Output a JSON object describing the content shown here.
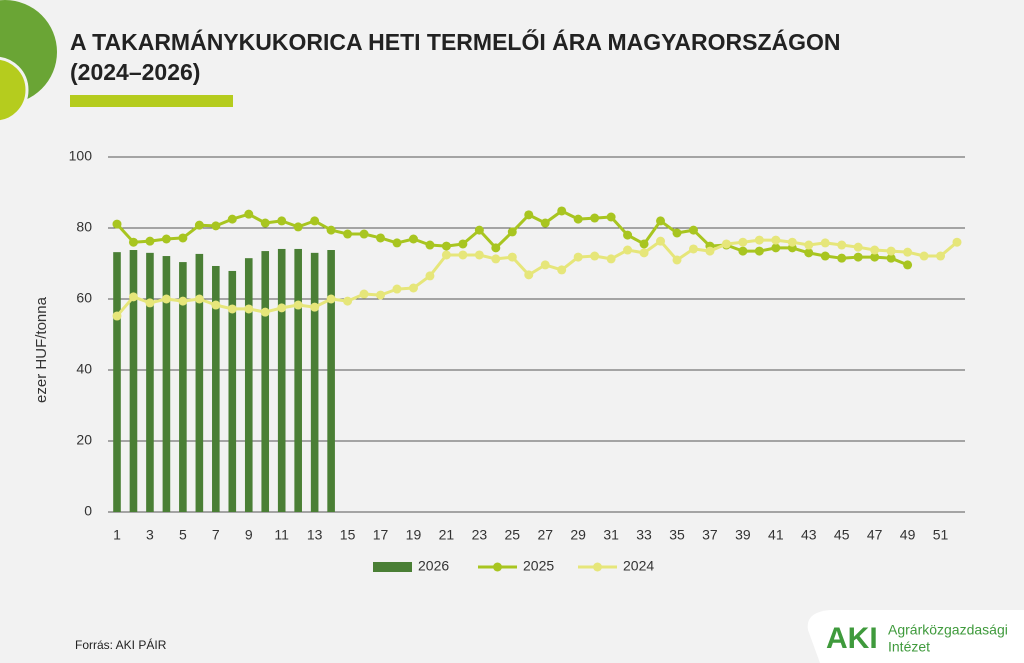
{
  "chart_data": {
    "type": "bar-line",
    "title": "A TAKARMÁNYKUKORICA HETI TERMELŐI ÁRA MAGYARORSZÁGON",
    "subtitle": "(2024–2026)",
    "y_label": "ezer HUF/tonna",
    "categories": [
      1,
      null,
      3,
      null,
      5,
      null,
      7,
      null,
      9,
      null,
      11,
      null,
      13,
      null,
      15,
      null,
      17,
      null,
      19,
      null,
      21,
      null,
      23,
      null,
      25,
      null,
      27,
      null,
      29,
      null,
      31,
      null,
      33,
      null,
      35,
      null,
      37,
      null,
      39,
      null,
      41,
      null,
      43,
      null,
      45,
      null,
      47,
      null,
      49,
      null,
      51,
      null
    ],
    "ylim": [
      0,
      100
    ],
    "yticks": [
      0,
      20,
      40,
      60,
      80,
      100
    ],
    "grid": true,
    "legend": "bottom",
    "series": [
      {
        "name": "2026",
        "type": "bar",
        "color": "#4a7f35",
        "values": [
          73.2,
          73.8,
          73,
          72.1,
          70.4,
          72.7,
          69.3,
          67.9,
          71.5,
          73.5,
          74.1,
          74.1,
          73,
          73.8,
          null,
          null,
          null,
          null,
          null,
          null,
          null,
          null,
          null,
          null,
          null,
          null,
          null,
          null,
          null,
          null,
          null,
          null,
          null,
          null,
          null,
          null,
          null,
          null,
          null,
          null,
          null,
          null,
          null,
          null,
          null,
          null,
          null,
          null,
          null,
          null,
          null,
          null
        ]
      },
      {
        "name": "2025",
        "type": "line",
        "color": "#a8c520",
        "values": [
          81.1,
          76,
          76.3,
          76.9,
          77.2,
          80.8,
          80.6,
          82.5,
          83.9,
          81.4,
          82,
          80.3,
          82,
          79.4,
          78.3,
          78.3,
          77.2,
          75.8,
          76.9,
          75.2,
          74.9,
          75.5,
          79.4,
          74.4,
          78.9,
          83.7,
          81.4,
          84.8,
          82.5,
          82.8,
          83.1,
          78,
          75.5,
          82,
          78.6,
          79.4,
          74.9,
          75.2,
          73.5,
          73.5,
          74.4,
          74.4,
          73,
          72.1,
          71.5,
          71.8,
          71.8,
          71.5,
          69.6,
          null,
          null,
          null
        ]
      },
      {
        "name": "2024",
        "type": "line",
        "color": "#e6e67a",
        "values": [
          55.2,
          60.6,
          58.9,
          60,
          59.4,
          60,
          58.3,
          57.2,
          57.2,
          56.3,
          57.5,
          58.3,
          57.7,
          60,
          59.4,
          61.4,
          61.1,
          62.8,
          63.1,
          66.5,
          72.4,
          72.4,
          72.4,
          71.3,
          71.8,
          66.8,
          69.6,
          68.2,
          71.8,
          72.1,
          71.3,
          73.8,
          73,
          76.3,
          71,
          74.1,
          73.5,
          75.5,
          76,
          76.6,
          76.6,
          76,
          75.2,
          75.8,
          75.2,
          74.6,
          73.8,
          73.5,
          73.2,
          72.1,
          72.1,
          76
        ]
      }
    ]
  },
  "source": "Forrás: AKI PÁIR",
  "logo": {
    "mark": "AKI",
    "line1": "Agrárközgazdasági",
    "line2": "Intézet"
  }
}
